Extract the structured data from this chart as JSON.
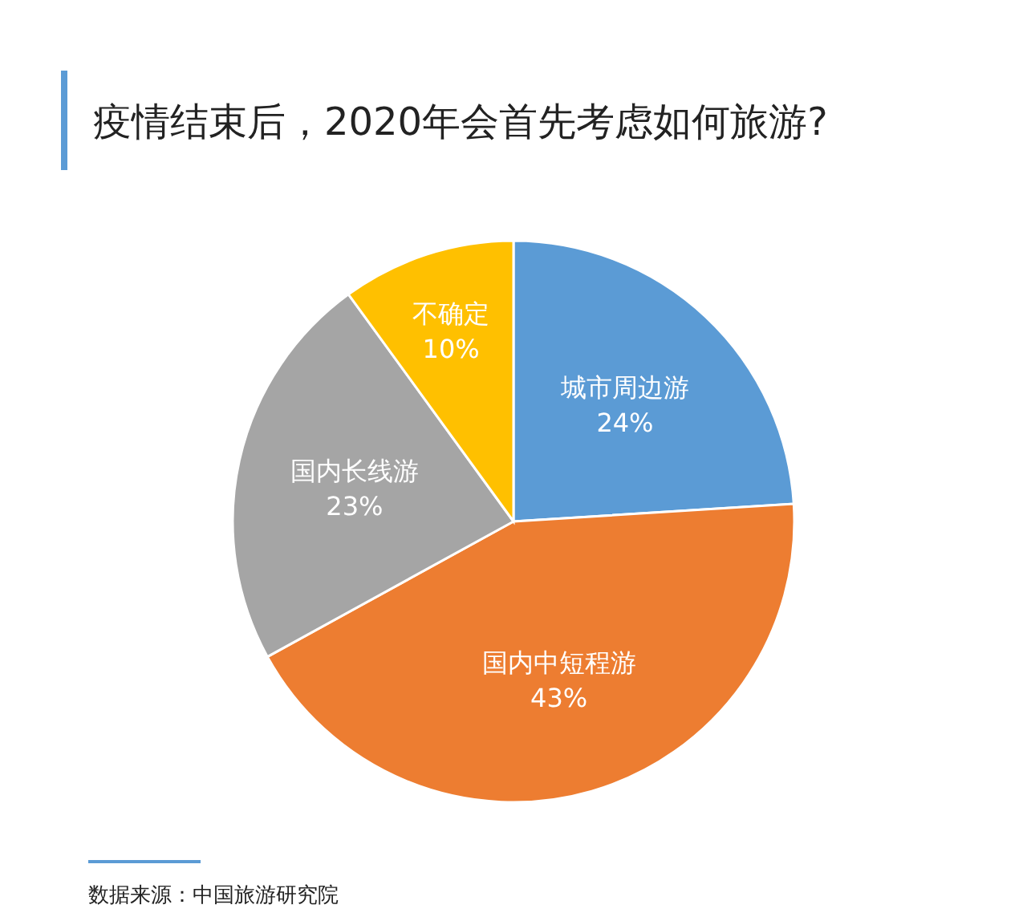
{
  "chart_data": {
    "type": "pie",
    "title": "疫情结束后，2020年会首先考虑如何旅游?",
    "categories": [
      "城市周边游",
      "国内中短程游",
      "国内长线游",
      "不确定"
    ],
    "values": [
      24,
      43,
      23,
      10
    ],
    "value_labels": [
      "24%",
      "43%",
      "23%",
      "10%"
    ],
    "colors": [
      "#5b9bd5",
      "#ed7d31",
      "#a5a5a5",
      "#ffc000"
    ],
    "annotations": [
      "数据来源：中国旅游研究院"
    ]
  }
}
